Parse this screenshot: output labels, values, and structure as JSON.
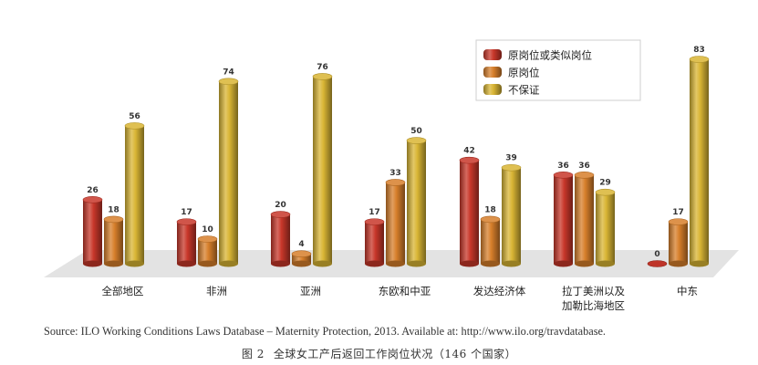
{
  "chart_data": {
    "type": "bar",
    "categories": [
      "全部地区",
      "非洲",
      "亚洲",
      "东欧和中亚",
      "发达经济体",
      "拉丁美洲以及加勒比海地区",
      "中东"
    ],
    "category_lines": [
      [
        "全部地区"
      ],
      [
        "非洲"
      ],
      [
        "亚洲"
      ],
      [
        "东欧和中亚"
      ],
      [
        "发达经济体"
      ],
      [
        "拉丁美洲以及",
        "加勒比海地区"
      ],
      [
        "中东"
      ]
    ],
    "series": [
      {
        "name": "原岗位或类似岗位",
        "values": [
          26,
          17,
          20,
          17,
          42,
          36,
          0
        ]
      },
      {
        "name": "原岗位",
        "values": [
          18,
          10,
          4,
          33,
          18,
          36,
          17
        ]
      },
      {
        "name": "不保证",
        "values": [
          56,
          74,
          76,
          50,
          39,
          29,
          83
        ]
      }
    ],
    "colors": {
      "series1": "#c8372a",
      "series2": "#d77f2b",
      "series3": "#d9b534"
    },
    "legend_position": "top-right",
    "title": "",
    "xlabel": "",
    "ylabel": "",
    "ylim": [
      0,
      90
    ],
    "data_labels": true
  },
  "source": "Source: ILO Working Conditions Laws Database – Maternity Protection, 2013. Available at: http://www.ilo.org/travdatabase.",
  "caption": {
    "number": "图 2",
    "text": "全球女工产后返回工作岗位状况（146 个国家）"
  }
}
